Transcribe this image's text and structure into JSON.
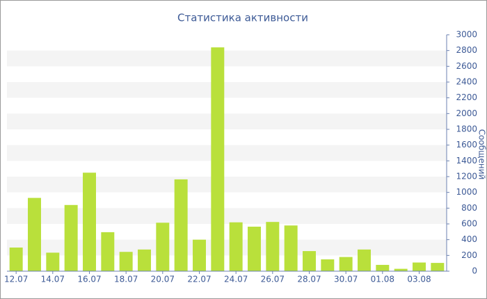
{
  "chart_data": {
    "type": "bar",
    "title": "Статистика активности",
    "y_label": "Сообщений",
    "categories": [
      "12.07",
      null,
      "14.07",
      null,
      "16.07",
      null,
      "18.07",
      null,
      "20.07",
      null,
      "22.07",
      null,
      "24.07",
      null,
      "26.07",
      null,
      "28.07",
      null,
      "30.07",
      null,
      "01.08",
      null,
      "03.08",
      null
    ],
    "values": [
      300,
      930,
      235,
      840,
      1250,
      495,
      245,
      275,
      615,
      1165,
      400,
      2840,
      620,
      565,
      625,
      580,
      255,
      150,
      180,
      275,
      80,
      30,
      110,
      105
    ],
    "color": "#b9e03b",
    "ylim": [
      0,
      3000
    ],
    "yticks": [
      0,
      200,
      400,
      600,
      800,
      1000,
      1200,
      1400,
      1600,
      1800,
      2000,
      2200,
      2400,
      2600,
      2800,
      3000
    ],
    "grid": "bands",
    "y_axis_side": "right"
  }
}
